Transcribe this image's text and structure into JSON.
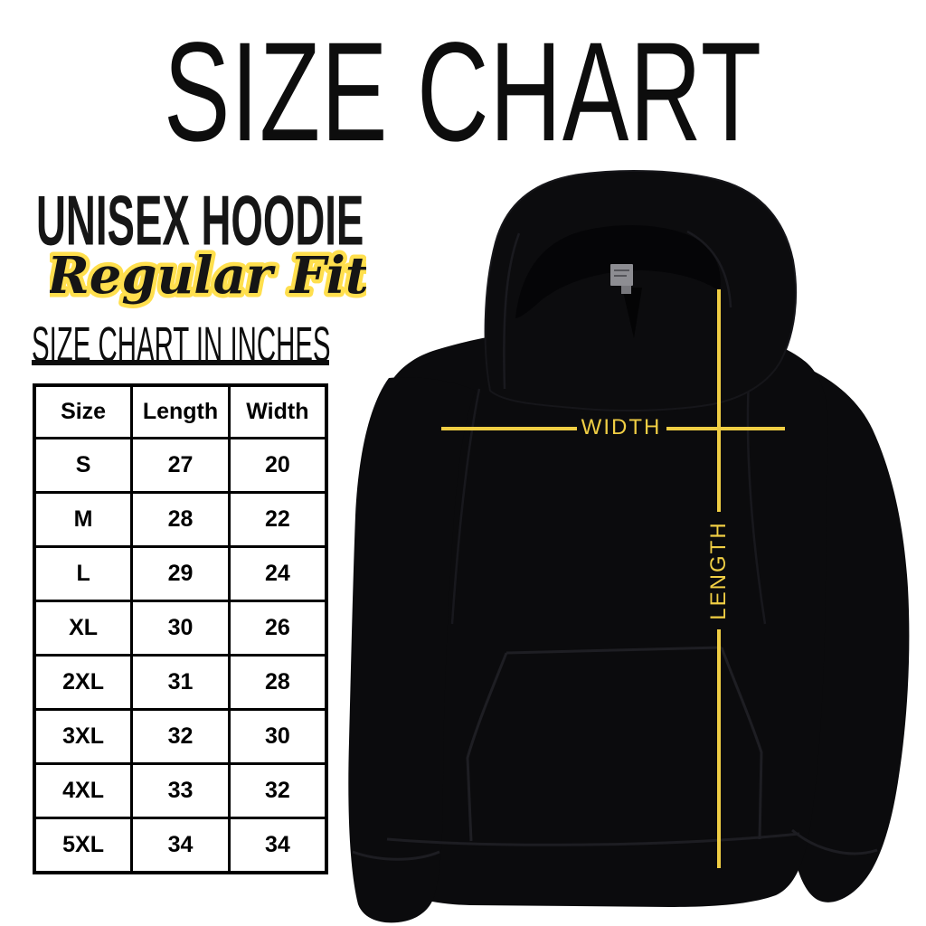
{
  "page": {
    "title": "SIZE CHART"
  },
  "product": {
    "name": "UNISEX HOODIE",
    "fit": "Regular Fit"
  },
  "size_table": {
    "heading": "SIZE CHART IN INCHES",
    "columns": [
      "Size",
      "Length",
      "Width"
    ],
    "rows": [
      [
        "S",
        "27",
        "20"
      ],
      [
        "M",
        "28",
        "22"
      ],
      [
        "L",
        "29",
        "24"
      ],
      [
        "XL",
        "30",
        "26"
      ],
      [
        "2XL",
        "31",
        "28"
      ],
      [
        "3XL",
        "32",
        "30"
      ],
      [
        "4XL",
        "33",
        "32"
      ],
      [
        "5XL",
        "34",
        "34"
      ]
    ]
  },
  "diagram": {
    "width_label": "WIDTH",
    "length_label": "LENGTH"
  },
  "colors": {
    "accent_yellow": "#F0CE44",
    "script_outline_yellow": "#FFDF4D",
    "ink_black": "#0d0d0d",
    "hoodie_black": "#0b0b0d"
  },
  "chart_data": {
    "type": "table",
    "title": "SIZE CHART",
    "subtitle": "UNISEX HOODIE - Regular Fit",
    "units": "inches",
    "columns": [
      "Size",
      "Length",
      "Width"
    ],
    "rows": [
      [
        "S",
        27,
        20
      ],
      [
        "M",
        28,
        22
      ],
      [
        "L",
        29,
        24
      ],
      [
        "XL",
        30,
        26
      ],
      [
        "2XL",
        31,
        28
      ],
      [
        "3XL",
        32,
        30
      ],
      [
        "4XL",
        33,
        32
      ],
      [
        "5XL",
        34,
        34
      ]
    ]
  }
}
